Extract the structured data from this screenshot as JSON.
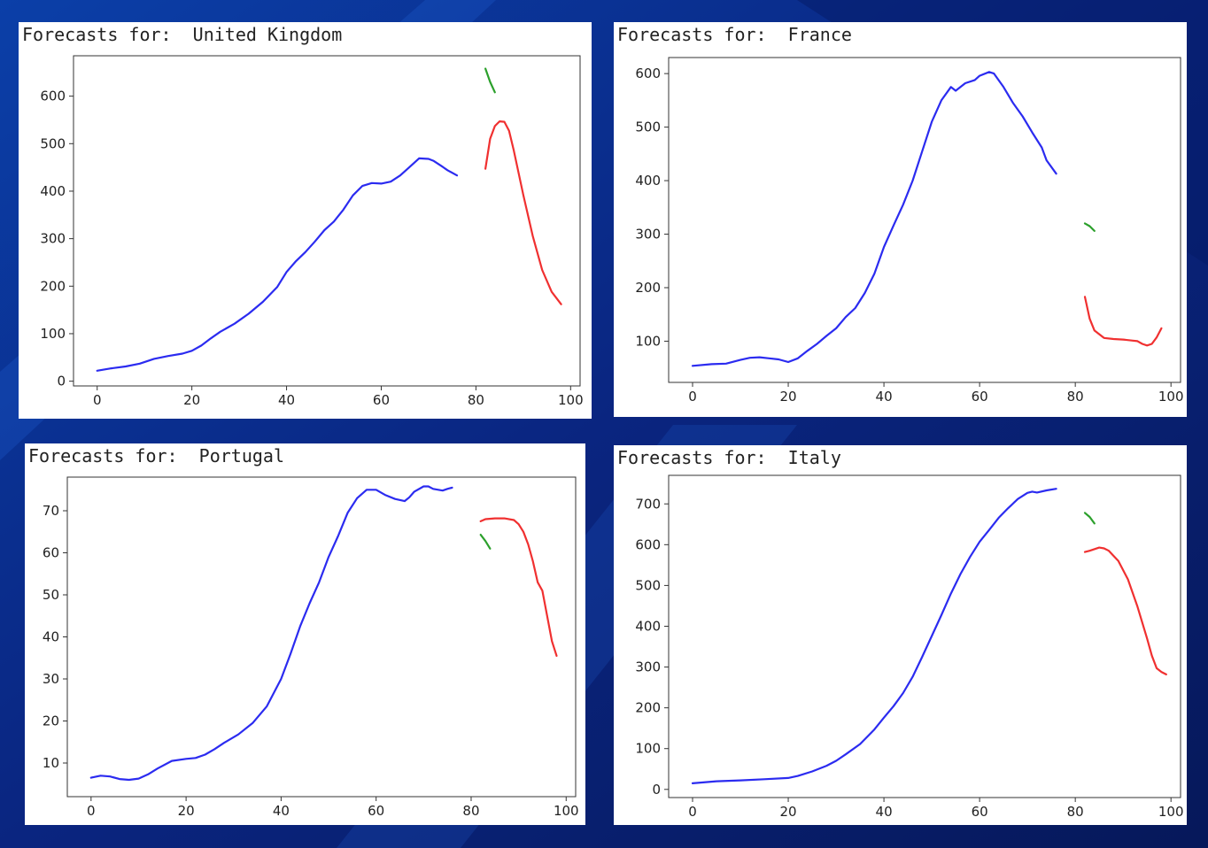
{
  "colors": {
    "historical": "#2b2bf0",
    "forecast_red": "#f03030",
    "forecast_green": "#2ca02c"
  },
  "chart_data": [
    {
      "type": "line",
      "title": "Forecasts for:  United Kingdom",
      "xlim": [
        -5,
        102
      ],
      "ylim": [
        -10,
        685
      ],
      "xticks": [
        0,
        20,
        40,
        60,
        80,
        100
      ],
      "yticks": [
        0,
        100,
        200,
        300,
        400,
        500,
        600
      ],
      "series": [
        {
          "color_key": "historical",
          "points": [
            [
              0,
              22
            ],
            [
              3,
              27
            ],
            [
              6,
              31
            ],
            [
              9,
              37
            ],
            [
              12,
              47
            ],
            [
              15,
              53
            ],
            [
              18,
              58
            ],
            [
              20,
              64
            ],
            [
              22,
              75
            ],
            [
              24,
              90
            ],
            [
              26,
              104
            ],
            [
              29,
              121
            ],
            [
              32,
              142
            ],
            [
              35,
              167
            ],
            [
              38,
              198
            ],
            [
              40,
              230
            ],
            [
              42,
              253
            ],
            [
              44,
              272
            ],
            [
              46,
              294
            ],
            [
              48,
              318
            ],
            [
              50,
              336
            ],
            [
              52,
              361
            ],
            [
              54,
              391
            ],
            [
              56,
              411
            ],
            [
              58,
              417
            ],
            [
              60,
              416
            ],
            [
              62,
              420
            ],
            [
              64,
              433
            ],
            [
              66,
              451
            ],
            [
              68,
              469
            ],
            [
              70,
              468
            ],
            [
              71,
              464
            ],
            [
              73,
              451
            ],
            [
              74,
              444
            ],
            [
              76,
              433
            ]
          ]
        },
        {
          "color_key": "forecast_red",
          "points": [
            [
              82,
              447
            ],
            [
              83,
              510
            ],
            [
              84,
              537
            ],
            [
              85,
              547
            ],
            [
              86,
              546
            ],
            [
              87,
              527
            ],
            [
              88,
              485
            ],
            [
              90,
              392
            ],
            [
              92,
              306
            ],
            [
              94,
              234
            ],
            [
              96,
              188
            ],
            [
              98,
              162
            ]
          ]
        },
        {
          "color_key": "forecast_green",
          "points": [
            [
              82,
              658
            ],
            [
              83,
              630
            ],
            [
              84,
              608
            ]
          ]
        }
      ]
    },
    {
      "type": "line",
      "title": "Forecasts for:  France",
      "xlim": [
        -5,
        102
      ],
      "ylim": [
        23,
        630
      ],
      "xticks": [
        0,
        20,
        40,
        60,
        80,
        100
      ],
      "yticks": [
        100,
        200,
        300,
        400,
        500,
        600
      ],
      "series": [
        {
          "color_key": "historical",
          "points": [
            [
              0,
              54
            ],
            [
              4,
              57
            ],
            [
              7,
              58
            ],
            [
              10,
              65
            ],
            [
              12,
              69
            ],
            [
              14,
              70
            ],
            [
              16,
              68
            ],
            [
              18,
              66
            ],
            [
              20,
              61
            ],
            [
              22,
              68
            ],
            [
              24,
              82
            ],
            [
              26,
              95
            ],
            [
              28,
              110
            ],
            [
              30,
              124
            ],
            [
              32,
              145
            ],
            [
              34,
              162
            ],
            [
              36,
              190
            ],
            [
              38,
              226
            ],
            [
              40,
              276
            ],
            [
              42,
              316
            ],
            [
              44,
              355
            ],
            [
              46,
              400
            ],
            [
              48,
              455
            ],
            [
              50,
              510
            ],
            [
              52,
              550
            ],
            [
              54,
              575
            ],
            [
              55,
              568
            ],
            [
              57,
              582
            ],
            [
              59,
              588
            ],
            [
              60,
              596
            ],
            [
              62,
              603
            ],
            [
              63,
              600
            ],
            [
              65,
              575
            ],
            [
              67,
              545
            ],
            [
              69,
              520
            ],
            [
              71,
              490
            ],
            [
              73,
              462
            ],
            [
              74,
              438
            ],
            [
              76,
              413
            ]
          ]
        },
        {
          "color_key": "forecast_red",
          "points": [
            [
              82,
              183
            ],
            [
              83,
              142
            ],
            [
              84,
              120
            ],
            [
              86,
              106
            ],
            [
              88,
              104
            ],
            [
              90,
              103
            ],
            [
              92,
              101
            ],
            [
              93,
              100
            ],
            [
              94,
              95
            ],
            [
              95,
              92
            ],
            [
              96,
              95
            ],
            [
              97,
              107
            ],
            [
              98,
              124
            ]
          ]
        },
        {
          "color_key": "forecast_green",
          "points": [
            [
              82,
              320
            ],
            [
              83,
              315
            ],
            [
              84,
              306
            ]
          ]
        }
      ]
    },
    {
      "type": "line",
      "title": "Forecasts for:  Portugal",
      "xlim": [
        -5,
        102
      ],
      "ylim": [
        2,
        78
      ],
      "xticks": [
        0,
        20,
        40,
        60,
        80,
        100
      ],
      "yticks": [
        10,
        20,
        30,
        40,
        50,
        60,
        70
      ],
      "series": [
        {
          "color_key": "historical",
          "points": [
            [
              0,
              6.5
            ],
            [
              2,
              7
            ],
            [
              4,
              6.8
            ],
            [
              6,
              6.2
            ],
            [
              8,
              6
            ],
            [
              10,
              6.3
            ],
            [
              12,
              7.3
            ],
            [
              14,
              8.7
            ],
            [
              17,
              10.5
            ],
            [
              20,
              11
            ],
            [
              22,
              11.2
            ],
            [
              24,
              12
            ],
            [
              26,
              13.3
            ],
            [
              28,
              14.8
            ],
            [
              31,
              16.8
            ],
            [
              34,
              19.5
            ],
            [
              37,
              23.5
            ],
            [
              40,
              30
            ],
            [
              42,
              36
            ],
            [
              44,
              42.5
            ],
            [
              46,
              48
            ],
            [
              48,
              53
            ],
            [
              50,
              59
            ],
            [
              52,
              64
            ],
            [
              54,
              69.5
            ],
            [
              56,
              73
            ],
            [
              58,
              75
            ],
            [
              60,
              75
            ],
            [
              62,
              73.7
            ],
            [
              64,
              72.8
            ],
            [
              66,
              72.3
            ],
            [
              67,
              73.2
            ],
            [
              68,
              74.5
            ],
            [
              70,
              75.8
            ],
            [
              71,
              75.8
            ],
            [
              72,
              75.2
            ],
            [
              74,
              74.8
            ],
            [
              75,
              75.2
            ],
            [
              76,
              75.5
            ]
          ]
        },
        {
          "color_key": "forecast_red",
          "points": [
            [
              82,
              67.5
            ],
            [
              83,
              68
            ],
            [
              85,
              68.2
            ],
            [
              87,
              68.2
            ],
            [
              89,
              67.8
            ],
            [
              90,
              66.8
            ],
            [
              91,
              65
            ],
            [
              92,
              62
            ],
            [
              93,
              58
            ],
            [
              94,
              53
            ],
            [
              95,
              51
            ],
            [
              96,
              45
            ],
            [
              97,
              39
            ],
            [
              98,
              35.5
            ]
          ]
        },
        {
          "color_key": "forecast_green",
          "points": [
            [
              82,
              64.3
            ],
            [
              83,
              62.8
            ],
            [
              84,
              61
            ]
          ]
        }
      ]
    },
    {
      "type": "line",
      "title": "Forecasts for:  Italy",
      "xlim": [
        -5,
        102
      ],
      "ylim": [
        -20,
        770
      ],
      "xticks": [
        0,
        20,
        40,
        60,
        80,
        100
      ],
      "yticks": [
        0,
        100,
        200,
        300,
        400,
        500,
        600,
        700
      ],
      "series": [
        {
          "color_key": "historical",
          "points": [
            [
              0,
              15
            ],
            [
              5,
              20
            ],
            [
              10,
              22
            ],
            [
              15,
              25
            ],
            [
              20,
              28
            ],
            [
              22,
              33
            ],
            [
              25,
              44
            ],
            [
              28,
              58
            ],
            [
              30,
              70
            ],
            [
              32,
              86
            ],
            [
              35,
              111
            ],
            [
              38,
              147
            ],
            [
              40,
              176
            ],
            [
              42,
              204
            ],
            [
              44,
              236
            ],
            [
              46,
              276
            ],
            [
              48,
              325
            ],
            [
              50,
              376
            ],
            [
              52,
              427
            ],
            [
              54,
              480
            ],
            [
              56,
              528
            ],
            [
              58,
              570
            ],
            [
              60,
              607
            ],
            [
              62,
              636
            ],
            [
              64,
              666
            ],
            [
              66,
              690
            ],
            [
              68,
              712
            ],
            [
              70,
              727
            ],
            [
              71,
              730
            ],
            [
              72,
              728
            ],
            [
              74,
              733
            ],
            [
              76,
              737
            ]
          ]
        },
        {
          "color_key": "forecast_red",
          "points": [
            [
              82,
              582
            ],
            [
              83,
              585
            ],
            [
              85,
              593
            ],
            [
              86,
              591
            ],
            [
              87,
              585
            ],
            [
              89,
              560
            ],
            [
              91,
              515
            ],
            [
              93,
              448
            ],
            [
              95,
              370
            ],
            [
              96,
              328
            ],
            [
              97,
              297
            ],
            [
              98,
              288
            ],
            [
              99,
              282
            ]
          ]
        },
        {
          "color_key": "forecast_green",
          "points": [
            [
              82,
              678
            ],
            [
              83,
              668
            ],
            [
              84,
              652
            ]
          ]
        }
      ]
    }
  ]
}
